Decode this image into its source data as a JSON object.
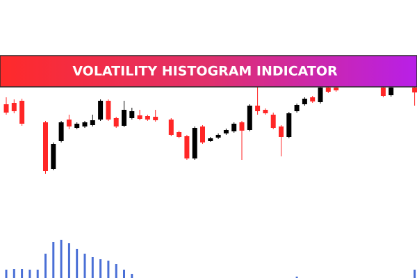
{
  "chart_data": [
    {
      "type": "candlestick",
      "title": "VOLATILITY HISTOGRAM INDICATOR",
      "up_color": "#000000",
      "down_color": "#ff2626",
      "x": [
        0,
        1,
        2,
        5,
        6,
        7,
        8,
        9,
        10,
        11,
        12,
        13,
        14,
        15,
        16,
        17,
        18,
        19,
        21,
        22,
        23,
        24,
        25,
        26,
        27,
        28,
        29,
        30,
        31,
        32,
        33,
        34,
        35,
        36,
        37,
        38,
        39,
        40,
        41,
        42,
        48,
        49,
        52
      ],
      "open": [
        250,
        252,
        255,
        224,
        157,
        197,
        228,
        216,
        218,
        220,
        228,
        255,
        230,
        219,
        230,
        234,
        233,
        232,
        228,
        210,
        204,
        172,
        218,
        197,
        202,
        208,
        211,
        224,
        213,
        248,
        242,
        235,
        218,
        203,
        240,
        250,
        260,
        253,
        274,
        274,
        274,
        263,
        274
      ],
      "high": [
        260,
        257,
        258,
        226,
        195,
        226,
        235,
        224,
        226,
        235,
        257,
        257,
        232,
        255,
        245,
        242,
        235,
        242,
        230,
        212,
        206,
        218,
        220,
        203,
        208,
        215,
        224,
        226,
        250,
        275,
        244,
        238,
        220,
        239,
        251,
        260,
        262,
        276,
        276,
        276,
        276,
        276,
        276
      ],
      "low": [
        235,
        237,
        219,
        150,
        155,
        195,
        214,
        214,
        216,
        218,
        226,
        226,
        216,
        217,
        228,
        227,
        226,
        225,
        204,
        201,
        170,
        170,
        193,
        196,
        200,
        206,
        209,
        170,
        211,
        235,
        235,
        214,
        175,
        201,
        238,
        248,
        252,
        251,
        266,
        268,
        260,
        261,
        248
      ],
      "close": [
        238,
        240,
        222,
        154,
        193,
        224,
        218,
        222,
        224,
        227,
        255,
        228,
        218,
        242,
        240,
        229,
        228,
        227,
        206,
        203,
        172,
        216,
        195,
        201,
        206,
        213,
        222,
        212,
        248,
        240,
        237,
        216,
        203,
        237,
        249,
        258,
        254,
        274,
        268,
        270,
        262,
        274,
        267
      ]
    },
    {
      "type": "bar",
      "color": "#4a6fd6",
      "x": [
        0,
        1,
        2,
        3,
        4,
        5,
        6,
        7,
        8,
        9,
        10,
        11,
        12,
        13,
        14,
        15,
        16,
        37,
        52
      ],
      "values": [
        12,
        13,
        13,
        12,
        12,
        35,
        52,
        55,
        50,
        42,
        35,
        30,
        27,
        25,
        20,
        12,
        6,
        2,
        12
      ]
    }
  ]
}
